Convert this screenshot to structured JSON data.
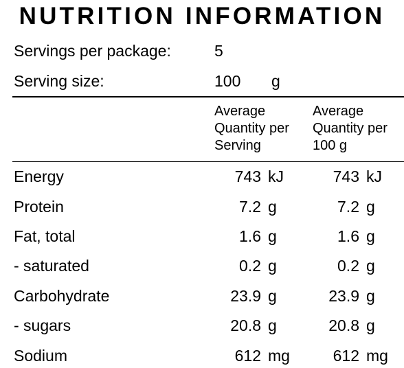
{
  "panel": {
    "title": "NUTRITION INFORMATION",
    "servings_label": "Servings per package:",
    "servings_value": "5",
    "serving_size_label": "Serving size:",
    "serving_size_value": "100",
    "serving_size_unit": "g"
  },
  "columns": {
    "per_serving": [
      "Average",
      "Quantity per",
      "Serving"
    ],
    "per_100g": [
      "Average",
      "Quantity per",
      "100 g"
    ]
  },
  "rows": [
    {
      "label": "Energy",
      "serving": "743",
      "serving_unit": "kJ",
      "per100": "743",
      "per100_unit": "kJ"
    },
    {
      "label": "Protein",
      "serving": "7.2",
      "serving_unit": "g",
      "per100": "7.2",
      "per100_unit": "g"
    },
    {
      "label": "Fat, total",
      "serving": "1.6",
      "serving_unit": "g",
      "per100": "1.6",
      "per100_unit": "g"
    },
    {
      "label": "- saturated",
      "serving": "0.2",
      "serving_unit": "g",
      "per100": "0.2",
      "per100_unit": "g"
    },
    {
      "label": "Carbohydrate",
      "serving": "23.9",
      "serving_unit": "g",
      "per100": "23.9",
      "per100_unit": "g"
    },
    {
      "label": "- sugars",
      "serving": "20.8",
      "serving_unit": "g",
      "per100": "20.8",
      "per100_unit": "g"
    },
    {
      "label": "Sodium",
      "serving": "612",
      "serving_unit": "mg",
      "per100": "612",
      "per100_unit": "mg"
    }
  ]
}
